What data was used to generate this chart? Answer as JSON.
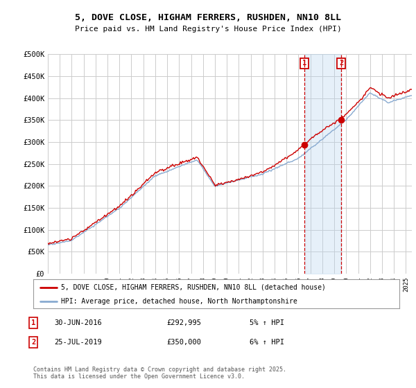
{
  "title": "5, DOVE CLOSE, HIGHAM FERRERS, RUSHDEN, NN10 8LL",
  "subtitle": "Price paid vs. HM Land Registry's House Price Index (HPI)",
  "ylim": [
    0,
    500000
  ],
  "yticks": [
    0,
    50000,
    100000,
    150000,
    200000,
    250000,
    300000,
    350000,
    400000,
    450000,
    500000
  ],
  "ytick_labels": [
    "£0",
    "£50K",
    "£100K",
    "£150K",
    "£200K",
    "£250K",
    "£300K",
    "£350K",
    "£400K",
    "£450K",
    "£500K"
  ],
  "sale1_date": 2016.5,
  "sale1_price": 292995,
  "sale1_text": "30-JUN-2016",
  "sale1_amount": "£292,995",
  "sale1_hpi": "5% ↑ HPI",
  "sale2_date": 2019.58,
  "sale2_price": 350000,
  "sale2_text": "25-JUL-2019",
  "sale2_amount": "£350,000",
  "sale2_hpi": "6% ↑ HPI",
  "line_color_house": "#cc0000",
  "line_color_hpi": "#88aad0",
  "background_color": "#ffffff",
  "grid_color": "#cccccc",
  "legend_house": "5, DOVE CLOSE, HIGHAM FERRERS, RUSHDEN, NN10 8LL (detached house)",
  "legend_hpi": "HPI: Average price, detached house, North Northamptonshire",
  "footer": "Contains HM Land Registry data © Crown copyright and database right 2025.\nThis data is licensed under the Open Government Licence v3.0.",
  "xstart": 1995,
  "xend": 2025.5
}
